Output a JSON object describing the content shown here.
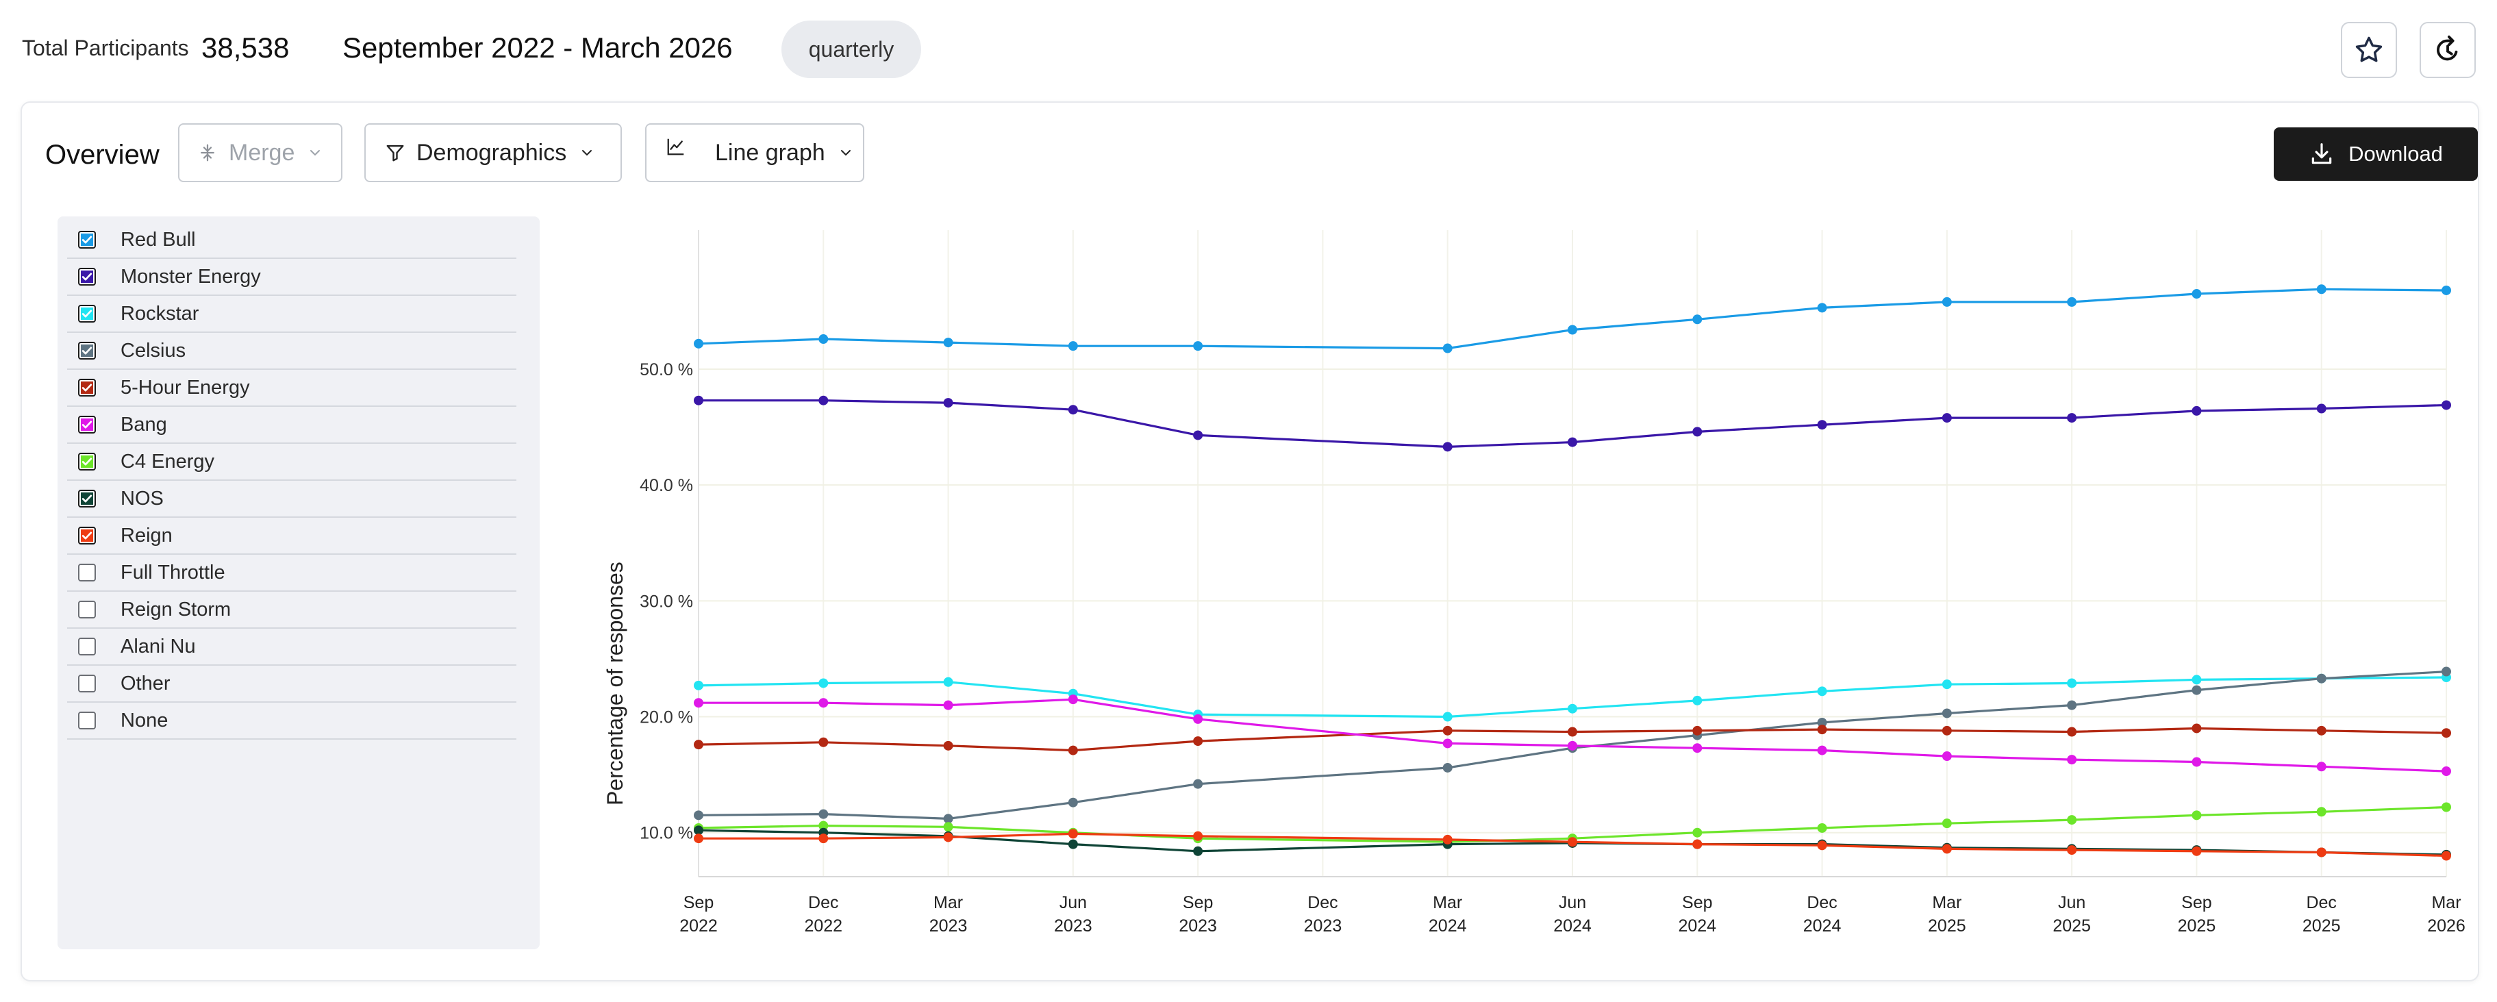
{
  "header": {
    "total_label": "Total Participants",
    "total_value": "38,538",
    "date_range": "September 2022 - March 2026",
    "interval": "quarterly",
    "favorite_icon": "star-icon",
    "refresh_icon": "refresh-icon"
  },
  "toolbar": {
    "title": "Overview",
    "merge_label": "Merge",
    "demographics_label": "Demographics",
    "graph_type_label": "Line graph",
    "download_label": "Download"
  },
  "legend": {
    "items": [
      {
        "label": "Red Bull",
        "checked": true,
        "color": "#1a9be6"
      },
      {
        "label": "Monster Energy",
        "checked": true,
        "color": "#3a17a8"
      },
      {
        "label": "Rockstar",
        "checked": true,
        "color": "#22e4f2"
      },
      {
        "label": "Celsius",
        "checked": true,
        "color": "#5e7482"
      },
      {
        "label": "5-Hour Energy",
        "checked": true,
        "color": "#b32812"
      },
      {
        "label": "Bang",
        "checked": true,
        "color": "#df19e8"
      },
      {
        "label": "C4 Energy",
        "checked": true,
        "color": "#6ce52a"
      },
      {
        "label": "NOS",
        "checked": true,
        "color": "#0f4436"
      },
      {
        "label": "Reign",
        "checked": true,
        "color": "#ee3b12"
      },
      {
        "label": "Full Throttle",
        "checked": false,
        "color": ""
      },
      {
        "label": "Reign Storm",
        "checked": false,
        "color": ""
      },
      {
        "label": "Alani Nu",
        "checked": false,
        "color": ""
      },
      {
        "label": "Other",
        "checked": false,
        "color": ""
      },
      {
        "label": "None",
        "checked": false,
        "color": ""
      }
    ]
  },
  "chart_data": {
    "type": "line",
    "ylabel": "Percentage of responses",
    "xlabel": "",
    "x_ticks": [
      [
        "Sep",
        "2022"
      ],
      [
        "Dec",
        "2022"
      ],
      [
        "Mar",
        "2023"
      ],
      [
        "Jun",
        "2023"
      ],
      [
        "Sep",
        "2023"
      ],
      [
        "Dec",
        "2023"
      ],
      [
        "Mar",
        "2024"
      ],
      [
        "Jun",
        "2024"
      ],
      [
        "Sep",
        "2024"
      ],
      [
        "Dec",
        "2024"
      ],
      [
        "Mar",
        "2025"
      ],
      [
        "Jun",
        "2025"
      ],
      [
        "Sep",
        "2025"
      ],
      [
        "Dec",
        "2025"
      ],
      [
        "Mar",
        "2026"
      ]
    ],
    "y_ticks": [
      {
        "value": 10,
        "label": "10.0 %"
      },
      {
        "value": 20,
        "label": "20.0 %"
      },
      {
        "value": 30,
        "label": "30.0 %"
      },
      {
        "value": 40,
        "label": "40.0 %"
      },
      {
        "value": 50,
        "label": "50.0 %"
      }
    ],
    "ylim": [
      6.2,
      62
    ],
    "grid": true,
    "series": [
      {
        "name": "Red Bull",
        "color": "#1a9be6",
        "points": [
          [
            0,
            52.2
          ],
          [
            1,
            52.6
          ],
          [
            2,
            52.3
          ],
          [
            3,
            52.0
          ],
          [
            4,
            52.0
          ],
          [
            6,
            51.8
          ],
          [
            7,
            53.4
          ],
          [
            8,
            54.3
          ],
          [
            9,
            55.3
          ],
          [
            10,
            55.8
          ],
          [
            11,
            55.8
          ],
          [
            12,
            56.5
          ],
          [
            13,
            56.9
          ],
          [
            14,
            56.8
          ]
        ]
      },
      {
        "name": "Monster Energy",
        "color": "#3a17a8",
        "points": [
          [
            0,
            47.3
          ],
          [
            1,
            47.3
          ],
          [
            2,
            47.1
          ],
          [
            3,
            46.5
          ],
          [
            4,
            44.3
          ],
          [
            6,
            43.3
          ],
          [
            7,
            43.7
          ],
          [
            8,
            44.6
          ],
          [
            9,
            45.2
          ],
          [
            10,
            45.8
          ],
          [
            11,
            45.8
          ],
          [
            12,
            46.4
          ],
          [
            13,
            46.6
          ],
          [
            14,
            46.9
          ]
        ]
      },
      {
        "name": "Rockstar",
        "color": "#22e4f2",
        "points": [
          [
            0,
            22.7
          ],
          [
            1,
            22.9
          ],
          [
            2,
            23.0
          ],
          [
            3,
            22.0
          ],
          [
            4,
            20.2
          ],
          [
            6,
            20.0
          ],
          [
            7,
            20.7
          ],
          [
            8,
            21.4
          ],
          [
            9,
            22.2
          ],
          [
            10,
            22.8
          ],
          [
            11,
            22.9
          ],
          [
            12,
            23.2
          ],
          [
            13,
            23.3
          ],
          [
            14,
            23.4
          ]
        ]
      },
      {
        "name": "Celsius",
        "color": "#5e7482",
        "points": [
          [
            0,
            11.5
          ],
          [
            1,
            11.6
          ],
          [
            2,
            11.2
          ],
          [
            3,
            12.6
          ],
          [
            4,
            14.2
          ],
          [
            6,
            15.6
          ],
          [
            7,
            17.3
          ],
          [
            8,
            18.4
          ],
          [
            9,
            19.5
          ],
          [
            10,
            20.3
          ],
          [
            11,
            21.0
          ],
          [
            12,
            22.3
          ],
          [
            13,
            23.3
          ],
          [
            14,
            23.9
          ]
        ]
      },
      {
        "name": "5-Hour Energy",
        "color": "#b32812",
        "points": [
          [
            0,
            17.6
          ],
          [
            1,
            17.8
          ],
          [
            2,
            17.5
          ],
          [
            3,
            17.1
          ],
          [
            4,
            17.9
          ],
          [
            6,
            18.8
          ],
          [
            7,
            18.7
          ],
          [
            8,
            18.8
          ],
          [
            9,
            18.9
          ],
          [
            10,
            18.8
          ],
          [
            11,
            18.7
          ],
          [
            12,
            19.0
          ],
          [
            13,
            18.8
          ],
          [
            14,
            18.6
          ]
        ]
      },
      {
        "name": "Bang",
        "color": "#df19e8",
        "points": [
          [
            0,
            21.2
          ],
          [
            1,
            21.2
          ],
          [
            2,
            21.0
          ],
          [
            3,
            21.5
          ],
          [
            4,
            19.8
          ],
          [
            6,
            17.7
          ],
          [
            7,
            17.5
          ],
          [
            8,
            17.3
          ],
          [
            9,
            17.1
          ],
          [
            10,
            16.6
          ],
          [
            11,
            16.3
          ],
          [
            12,
            16.1
          ],
          [
            13,
            15.7
          ],
          [
            14,
            15.3
          ]
        ]
      },
      {
        "name": "C4 Energy",
        "color": "#6ce52a",
        "points": [
          [
            0,
            10.4
          ],
          [
            1,
            10.6
          ],
          [
            2,
            10.5
          ],
          [
            3,
            10.0
          ],
          [
            4,
            9.5
          ],
          [
            6,
            9.2
          ],
          [
            7,
            9.5
          ],
          [
            8,
            10.0
          ],
          [
            9,
            10.4
          ],
          [
            10,
            10.8
          ],
          [
            11,
            11.1
          ],
          [
            12,
            11.5
          ],
          [
            13,
            11.8
          ],
          [
            14,
            12.2
          ]
        ]
      },
      {
        "name": "NOS",
        "color": "#0f4436",
        "points": [
          [
            0,
            10.2
          ],
          [
            1,
            10.0
          ],
          [
            2,
            9.7
          ],
          [
            3,
            9.0
          ],
          [
            4,
            8.4
          ],
          [
            6,
            9.0
          ],
          [
            7,
            9.1
          ],
          [
            8,
            9.0
          ],
          [
            9,
            9.0
          ],
          [
            10,
            8.7
          ],
          [
            11,
            8.6
          ],
          [
            12,
            8.5
          ],
          [
            13,
            8.3
          ],
          [
            14,
            8.1
          ]
        ]
      },
      {
        "name": "Reign",
        "color": "#ee3b12",
        "points": [
          [
            0,
            9.5
          ],
          [
            1,
            9.5
          ],
          [
            2,
            9.6
          ],
          [
            3,
            9.9
          ],
          [
            4,
            9.7
          ],
          [
            6,
            9.4
          ],
          [
            7,
            9.2
          ],
          [
            8,
            9.0
          ],
          [
            9,
            8.9
          ],
          [
            10,
            8.6
          ],
          [
            11,
            8.5
          ],
          [
            12,
            8.4
          ],
          [
            13,
            8.3
          ],
          [
            14,
            8.0
          ]
        ]
      }
    ]
  }
}
